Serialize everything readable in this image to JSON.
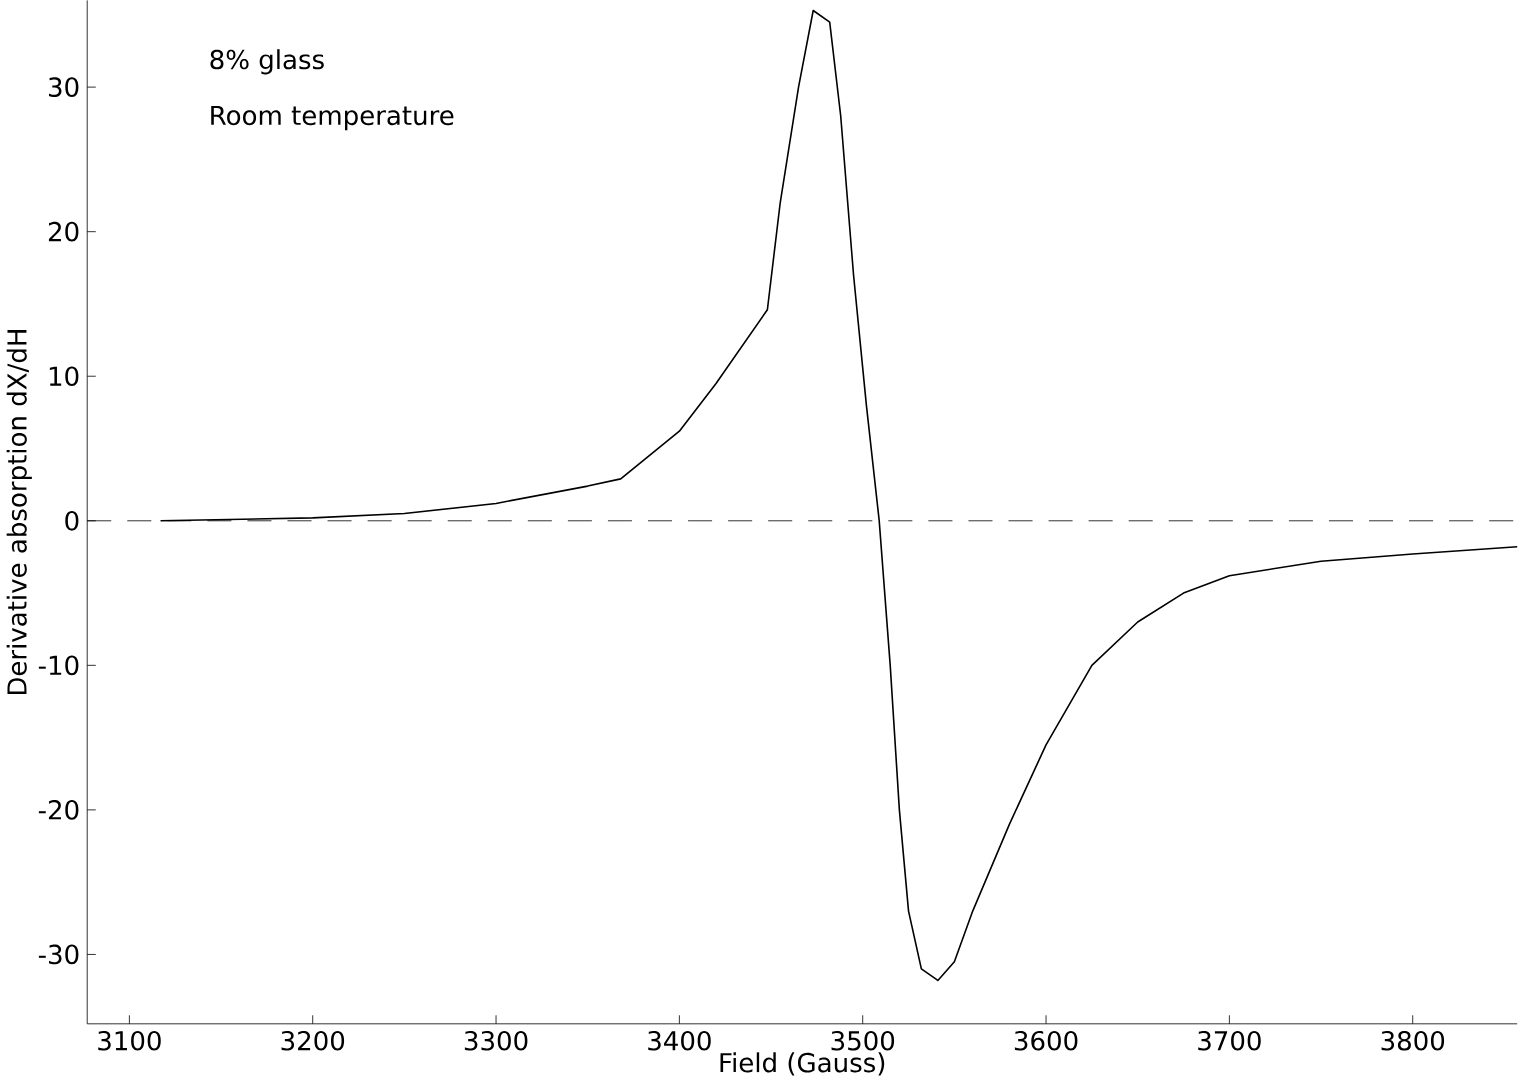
{
  "chart_data": {
    "type": "line",
    "xlabel": "Field (Gauss)",
    "ylabel": "Derivative absorption dX/dH",
    "annotations": [
      "8% glass",
      "Room temperature"
    ],
    "x": [
      3117,
      3200,
      3250,
      3300,
      3350,
      3368,
      3400,
      3420,
      3448,
      3455,
      3465,
      3473,
      3482,
      3488,
      3495,
      3502,
      3509,
      3515,
      3520,
      3525,
      3532,
      3541,
      3550,
      3560,
      3580,
      3600,
      3625,
      3650,
      3675,
      3700,
      3750,
      3800,
      3857
    ],
    "series": [
      {
        "color": "#000000",
        "values": [
          0,
          0.2,
          0.5,
          1.2,
          2.4,
          2.9,
          6.2,
          9.5,
          14.6,
          22,
          30,
          35.3,
          34.5,
          28,
          17,
          8,
          0,
          -10,
          -20,
          -27,
          -31,
          -31.8,
          -30.5,
          -27,
          -21,
          -15.5,
          -10,
          -7,
          -5,
          -3.8,
          -2.8,
          -2.3,
          -1.8
        ]
      }
    ],
    "xlim": [
      3077,
      3857
    ],
    "ylim": [
      -34.8,
      36
    ],
    "xticks": [
      3100,
      3200,
      3300,
      3400,
      3500,
      3600,
      3700,
      3800
    ],
    "yticks": [
      -30,
      -20,
      -10,
      0,
      10,
      20,
      30
    ],
    "ref_lines": [
      {
        "axis": "y",
        "value": 0,
        "color": "#000000",
        "line_style": "dashed"
      }
    ],
    "grid": false,
    "marker": "none",
    "line_style": "solid"
  }
}
